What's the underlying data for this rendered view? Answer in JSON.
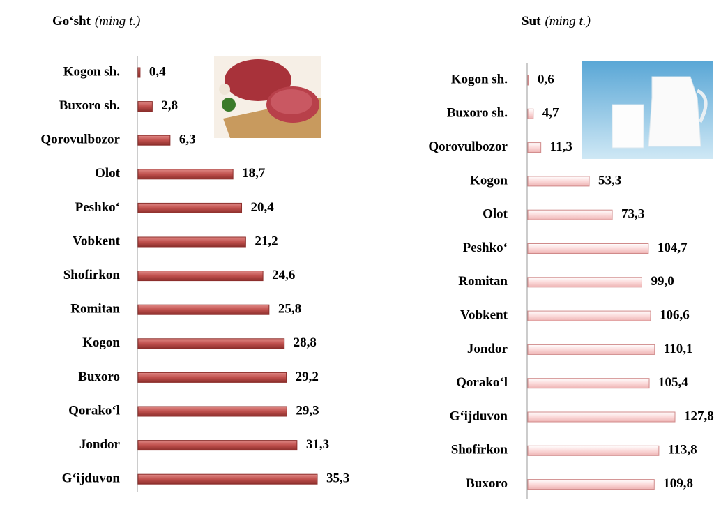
{
  "chart_data": [
    {
      "type": "bar",
      "orientation": "horizontal",
      "title": "Go‘sht",
      "subtitle": "(ming t.)",
      "categories": [
        "Kogon sh.",
        "Buxoro sh.",
        "Qorovulbozor",
        "Olot",
        "Peshko‘",
        "Vobkent",
        "Shofirkon",
        "Romitan",
        "Kogon",
        "Buxoro",
        "Qorako‘l",
        "Jondor",
        "G‘ijduvon"
      ],
      "values": [
        0.4,
        2.8,
        6.3,
        18.7,
        20.4,
        21.2,
        24.6,
        25.8,
        28.8,
        29.2,
        29.3,
        31.3,
        35.3
      ],
      "value_labels": [
        "0,4",
        "2,8",
        "6,3",
        "18,7",
        "20,4",
        "21,2",
        "24,6",
        "25,8",
        "28,8",
        "29,2",
        "29,3",
        "31,3",
        "35,3"
      ],
      "color": "#c0504d"
    },
    {
      "type": "bar",
      "orientation": "horizontal",
      "title": "Sut",
      "subtitle": "(ming t.)",
      "categories": [
        "Kogon sh.",
        "Buxoro sh.",
        "Qorovulbozor",
        "Kogon",
        "Olot",
        "Peshko‘",
        "Romitan",
        "Vobkent",
        "Jondor",
        "Qorako‘l",
        "G‘ijduvon",
        "Shofirkon",
        "Buxoro"
      ],
      "values": [
        0.6,
        4.7,
        11.3,
        53.3,
        73.3,
        104.7,
        99.0,
        106.6,
        110.1,
        105.4,
        127.8,
        113.8,
        109.8
      ],
      "value_labels": [
        "0,6",
        "4,7",
        "11,3",
        "53,3",
        "73,3",
        "104,7",
        "99,0",
        "106,6",
        "110,1",
        "105,4",
        "127,8",
        "113,8",
        "109,8"
      ],
      "color": "#fbdada"
    }
  ]
}
